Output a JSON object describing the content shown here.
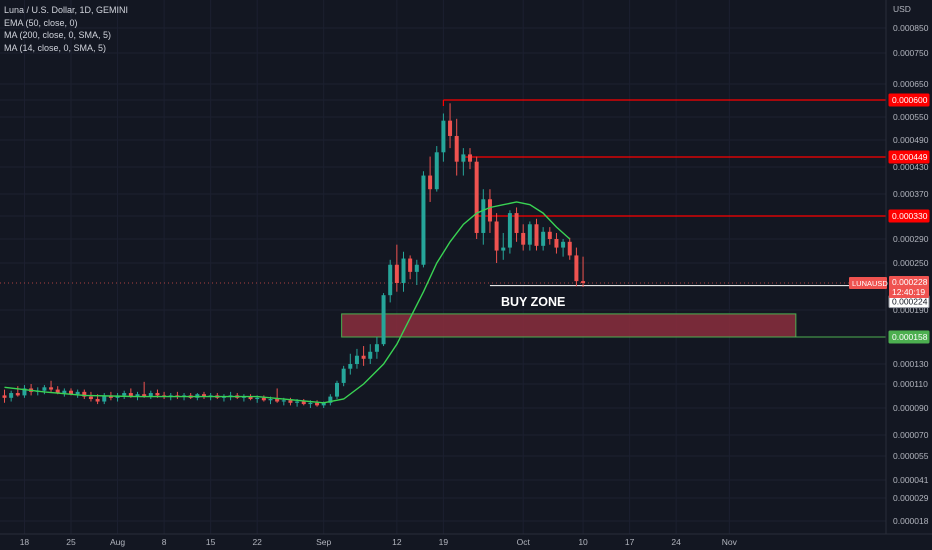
{
  "legend": {
    "symbol": "Luna / U.S. Dollar, 1D, GEMINI",
    "indicators": [
      "EMA (50, close, 0)",
      "MA (200, close, 0, SMA, 5)",
      "MA (14, close, 0, SMA, 5)"
    ]
  },
  "colors": {
    "background": "#131722",
    "up": "#26a69a",
    "down": "#ef5350",
    "ma": "#39d353",
    "resistance": "#ff0000",
    "support": "#4caf50",
    "zone_fill": "#8b2e3d"
  },
  "chart_data": {
    "type": "candlestick",
    "currency_label": "USD",
    "y_ticks": [
      "0.000850",
      "0.000750",
      "0.000650",
      "0.000600",
      "0.000550",
      "0.000490",
      "0.000430",
      "0.000370",
      "0.000330",
      "0.000290",
      "0.000250",
      "0.000190",
      "0.000158",
      "0.000130",
      "0.000110",
      "0.000090",
      "0.000070",
      "0.000055",
      "0.000041",
      "0.000029",
      "0.000018"
    ],
    "x_ticks": [
      "18",
      "25",
      "Aug",
      "8",
      "15",
      "22",
      "Sep",
      "12",
      "19",
      "Oct",
      "10",
      "17",
      "24",
      "Nov"
    ],
    "first_date": "2020-07-15",
    "candles": [
      {
        "o": 0.0001,
        "h": 0.000105,
        "l": 9.4e-05,
        "c": 9.8e-05
      },
      {
        "o": 9.8e-05,
        "h": 0.000104,
        "l": 9.5e-05,
        "c": 0.000102
      },
      {
        "o": 0.000102,
        "h": 0.000108,
        "l": 9.9e-05,
        "c": 0.0001
      },
      {
        "o": 0.0001,
        "h": 0.000109,
        "l": 9.8e-05,
        "c": 0.000106
      },
      {
        "o": 0.000106,
        "h": 0.00011,
        "l": 0.0001,
        "c": 0.000103
      },
      {
        "o": 0.000103,
        "h": 0.000107,
        "l": 0.0001,
        "c": 0.000104
      },
      {
        "o": 0.000104,
        "h": 0.000109,
        "l": 0.000101,
        "c": 0.000107
      },
      {
        "o": 0.000107,
        "h": 0.000113,
        "l": 0.000103,
        "c": 0.000105
      },
      {
        "o": 0.000105,
        "h": 0.000108,
        "l": 0.000101,
        "c": 0.000102
      },
      {
        "o": 0.000102,
        "h": 0.000106,
        "l": 9.9e-05,
        "c": 0.000104
      },
      {
        "o": 0.000104,
        "h": 0.000106,
        "l": 0.0001,
        "c": 0.000101
      },
      {
        "o": 0.000101,
        "h": 0.000105,
        "l": 9.8e-05,
        "c": 0.000103
      },
      {
        "o": 0.000103,
        "h": 0.000105,
        "l": 9.7e-05,
        "c": 9.9e-05
      },
      {
        "o": 9.9e-05,
        "h": 0.000103,
        "l": 9.5e-05,
        "c": 9.7e-05
      },
      {
        "o": 9.7e-05,
        "h": 0.000101,
        "l": 9.3e-05,
        "c": 9.5e-05
      },
      {
        "o": 9.5e-05,
        "h": 0.000102,
        "l": 9.3e-05,
        "c": 0.0001
      },
      {
        "o": 0.0001,
        "h": 0.000103,
        "l": 9.6e-05,
        "c": 9.8e-05
      },
      {
        "o": 9.8e-05,
        "h": 0.000102,
        "l": 9.5e-05,
        "c": 0.0001
      },
      {
        "o": 0.0001,
        "h": 0.000104,
        "l": 9.7e-05,
        "c": 0.000102
      },
      {
        "o": 0.000102,
        "h": 0.000106,
        "l": 9.8e-05,
        "c": 9.9e-05
      },
      {
        "o": 9.9e-05,
        "h": 0.000103,
        "l": 9.6e-05,
        "c": 0.000101
      },
      {
        "o": 0.000101,
        "h": 0.000112,
        "l": 9.8e-05,
        "c": 9.9e-05
      },
      {
        "o": 9.9e-05,
        "h": 0.000104,
        "l": 9.7e-05,
        "c": 0.000102
      },
      {
        "o": 0.000102,
        "h": 0.000105,
        "l": 9.8e-05,
        "c": 0.0001
      },
      {
        "o": 0.0001,
        "h": 0.000103,
        "l": 9.7e-05,
        "c": 9.9e-05
      },
      {
        "o": 9.9e-05,
        "h": 0.000102,
        "l": 9.6e-05,
        "c": 0.0001
      },
      {
        "o": 0.0001,
        "h": 0.000103,
        "l": 9.7e-05,
        "c": 9.9e-05
      },
      {
        "o": 9.9e-05,
        "h": 0.000102,
        "l": 9.6e-05,
        "c": 0.0001
      },
      {
        "o": 0.0001,
        "h": 0.000102,
        "l": 9.7e-05,
        "c": 9.8e-05
      },
      {
        "o": 9.8e-05,
        "h": 0.000102,
        "l": 9.6e-05,
        "c": 0.000101
      },
      {
        "o": 0.000101,
        "h": 0.000103,
        "l": 9.7e-05,
        "c": 9.9e-05
      },
      {
        "o": 9.9e-05,
        "h": 0.000102,
        "l": 9.6e-05,
        "c": 0.0001
      },
      {
        "o": 0.0001,
        "h": 0.000102,
        "l": 9.7e-05,
        "c": 9.8e-05
      },
      {
        "o": 9.8e-05,
        "h": 0.000101,
        "l": 9.5e-05,
        "c": 9.9e-05
      },
      {
        "o": 9.9e-05,
        "h": 0.000103,
        "l": 9.6e-05,
        "c": 0.0001
      },
      {
        "o": 0.0001,
        "h": 0.000102,
        "l": 9.7e-05,
        "c": 9.8e-05
      },
      {
        "o": 9.8e-05,
        "h": 0.000101,
        "l": 9.5e-05,
        "c": 9.9e-05
      },
      {
        "o": 9.9e-05,
        "h": 0.000101,
        "l": 9.6e-05,
        "c": 9.7e-05
      },
      {
        "o": 9.7e-05,
        "h": 0.0001,
        "l": 9.4e-05,
        "c": 9.8e-05
      },
      {
        "o": 9.8e-05,
        "h": 0.0001,
        "l": 9.5e-05,
        "c": 9.6e-05
      },
      {
        "o": 9.6e-05,
        "h": 9.9e-05,
        "l": 9.3e-05,
        "c": 9.7e-05
      },
      {
        "o": 9.7e-05,
        "h": 0.000106,
        "l": 9.4e-05,
        "c": 9.5e-05
      },
      {
        "o": 9.5e-05,
        "h": 9.8e-05,
        "l": 9.2e-05,
        "c": 9.6e-05
      },
      {
        "o": 9.6e-05,
        "h": 9.8e-05,
        "l": 9.2e-05,
        "c": 9.4e-05
      },
      {
        "o": 9.4e-05,
        "h": 9.7e-05,
        "l": 9.1e-05,
        "c": 9.5e-05
      },
      {
        "o": 9.5e-05,
        "h": 9.7e-05,
        "l": 9.2e-05,
        "c": 9.3e-05
      },
      {
        "o": 9.3e-05,
        "h": 9.6e-05,
        "l": 9e-05,
        "c": 9.4e-05
      },
      {
        "o": 9.4e-05,
        "h": 9.6e-05,
        "l": 9.1e-05,
        "c": 9.2e-05
      },
      {
        "o": 9.2e-05,
        "h": 9.5e-05,
        "l": 9e-05,
        "c": 9.4e-05
      },
      {
        "o": 9.4e-05,
        "h": 0.000101,
        "l": 9.2e-05,
        "c": 9.9e-05
      },
      {
        "o": 9.9e-05,
        "h": 0.000113,
        "l": 9.7e-05,
        "c": 0.000111
      },
      {
        "o": 0.000111,
        "h": 0.000128,
        "l": 0.000108,
        "c": 0.000125
      },
      {
        "o": 0.000125,
        "h": 0.00014,
        "l": 0.000119,
        "c": 0.00013
      },
      {
        "o": 0.00013,
        "h": 0.000145,
        "l": 0.000125,
        "c": 0.000138
      },
      {
        "o": 0.000138,
        "h": 0.000148,
        "l": 0.000128,
        "c": 0.000135
      },
      {
        "o": 0.000135,
        "h": 0.00015,
        "l": 0.00013,
        "c": 0.000142
      },
      {
        "o": 0.000142,
        "h": 0.000158,
        "l": 0.000135,
        "c": 0.00015
      },
      {
        "o": 0.00015,
        "h": 0.000213,
        "l": 0.000148,
        "c": 0.00021
      },
      {
        "o": 0.00021,
        "h": 0.000255,
        "l": 0.0002,
        "c": 0.000248
      },
      {
        "o": 0.000248,
        "h": 0.00028,
        "l": 0.000215,
        "c": 0.000228
      },
      {
        "o": 0.000228,
        "h": 0.000268,
        "l": 0.000215,
        "c": 0.000257
      },
      {
        "o": 0.000257,
        "h": 0.000262,
        "l": 0.000232,
        "c": 0.00024
      },
      {
        "o": 0.00024,
        "h": 0.000255,
        "l": 0.000225,
        "c": 0.000248
      },
      {
        "o": 0.000248,
        "h": 0.00042,
        "l": 0.000245,
        "c": 0.00041
      },
      {
        "o": 0.00041,
        "h": 0.00045,
        "l": 0.000355,
        "c": 0.00038
      },
      {
        "o": 0.00038,
        "h": 0.000475,
        "l": 0.000375,
        "c": 0.00046
      },
      {
        "o": 0.00046,
        "h": 0.00056,
        "l": 0.00044,
        "c": 0.00054
      },
      {
        "o": 0.00054,
        "h": 0.00059,
        "l": 0.00047,
        "c": 0.0005
      },
      {
        "o": 0.0005,
        "h": 0.000545,
        "l": 0.00041,
        "c": 0.00044
      },
      {
        "o": 0.00044,
        "h": 0.00047,
        "l": 0.00041,
        "c": 0.000455
      },
      {
        "o": 0.000455,
        "h": 0.00047,
        "l": 0.000425,
        "c": 0.00044
      },
      {
        "o": 0.00044,
        "h": 0.00045,
        "l": 0.00029,
        "c": 0.0003
      },
      {
        "o": 0.0003,
        "h": 0.00038,
        "l": 0.00028,
        "c": 0.00036
      },
      {
        "o": 0.00036,
        "h": 0.00038,
        "l": 0.0003,
        "c": 0.00032
      },
      {
        "o": 0.00032,
        "h": 0.000335,
        "l": 0.00025,
        "c": 0.00027
      },
      {
        "o": 0.00027,
        "h": 0.0003,
        "l": 0.000255,
        "c": 0.000275
      },
      {
        "o": 0.000275,
        "h": 0.00034,
        "l": 0.000265,
        "c": 0.000335
      },
      {
        "o": 0.000335,
        "h": 0.000345,
        "l": 0.000285,
        "c": 0.0003
      },
      {
        "o": 0.0003,
        "h": 0.000315,
        "l": 0.00027,
        "c": 0.00028
      },
      {
        "o": 0.00028,
        "h": 0.00032,
        "l": 0.00027,
        "c": 0.000315
      },
      {
        "o": 0.000315,
        "h": 0.000325,
        "l": 0.00027,
        "c": 0.000278
      },
      {
        "o": 0.000278,
        "h": 0.00031,
        "l": 0.00027,
        "c": 0.000302
      },
      {
        "o": 0.000302,
        "h": 0.00031,
        "l": 0.00028,
        "c": 0.00029
      },
      {
        "o": 0.00029,
        "h": 0.0003,
        "l": 0.000265,
        "c": 0.000275
      },
      {
        "o": 0.000275,
        "h": 0.00029,
        "l": 0.00026,
        "c": 0.000285
      },
      {
        "o": 0.000285,
        "h": 0.000292,
        "l": 0.000255,
        "c": 0.000262
      },
      {
        "o": 0.000262,
        "h": 0.000275,
        "l": 0.000223,
        "c": 0.00023
      },
      {
        "o": 0.00023,
        "h": 0.00026,
        "l": 0.000222,
        "c": 0.000228
      }
    ],
    "ma_line": [
      {
        "i": 0,
        "v": 0.000107
      },
      {
        "i": 6,
        "v": 0.000103
      },
      {
        "i": 12,
        "v": 0.0001
      },
      {
        "i": 20,
        "v": 9.9e-05
      },
      {
        "i": 30,
        "v": 9.9e-05
      },
      {
        "i": 38,
        "v": 9.9e-05
      },
      {
        "i": 44,
        "v": 9.6e-05
      },
      {
        "i": 48,
        "v": 9.4e-05
      },
      {
        "i": 51,
        "v": 9.7e-05
      },
      {
        "i": 54,
        "v": 0.00011
      },
      {
        "i": 57,
        "v": 0.00013
      },
      {
        "i": 59,
        "v": 0.00015
      },
      {
        "i": 61,
        "v": 0.00018
      },
      {
        "i": 63,
        "v": 0.000215
      },
      {
        "i": 65,
        "v": 0.00025
      },
      {
        "i": 67,
        "v": 0.000285
      },
      {
        "i": 69,
        "v": 0.000315
      },
      {
        "i": 71,
        "v": 0.000335
      },
      {
        "i": 73,
        "v": 0.000345
      },
      {
        "i": 75,
        "v": 0.00035
      },
      {
        "i": 77,
        "v": 0.000355
      },
      {
        "i": 79,
        "v": 0.00035
      },
      {
        "i": 81,
        "v": 0.000335
      },
      {
        "i": 83,
        "v": 0.00031
      },
      {
        "i": 85,
        "v": 0.00029
      }
    ],
    "horizontal_lines": [
      {
        "value": 0.0006,
        "label": "0.000600",
        "start_index": 66
      },
      {
        "value": 0.000449,
        "label": "0.000449",
        "start_index": 69
      },
      {
        "value": 0.00033,
        "label": "0.000330",
        "start_index": 71
      }
    ],
    "buy_zone": {
      "label": "BUY ZONE",
      "top": 0.000185,
      "bottom": 0.000158,
      "start_index": 51,
      "end_index": 119
    },
    "support_line": {
      "value": 0.000158,
      "label": "0.000158"
    },
    "price_line": {
      "value": 0.000224,
      "start_index": 73
    },
    "last_price": {
      "symbol": "LUNAUSD",
      "value": "0.000228",
      "countdown": "12:40:19",
      "crosshair": "0.000224"
    }
  }
}
